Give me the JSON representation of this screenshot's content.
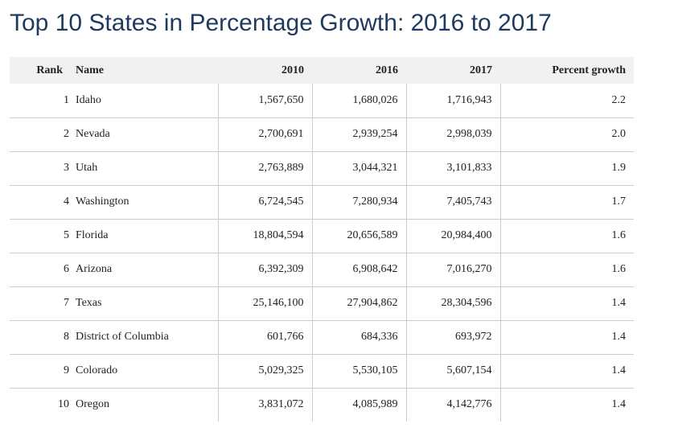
{
  "title": "Top 10 States in Percentage Growth: 2016 to 2017",
  "table": {
    "columns": [
      "Rank",
      "Name",
      "2010",
      "2016",
      "2017",
      "Percent growth"
    ],
    "rows": [
      [
        "1",
        "Idaho",
        "1,567,650",
        "1,680,026",
        "1,716,943",
        "2.2"
      ],
      [
        "2",
        "Nevada",
        "2,700,691",
        "2,939,254",
        "2,998,039",
        "2.0"
      ],
      [
        "3",
        "Utah",
        "2,763,889",
        "3,044,321",
        "3,101,833",
        "1.9"
      ],
      [
        "4",
        "Washington",
        "6,724,545",
        "7,280,934",
        "7,405,743",
        "1.7"
      ],
      [
        "5",
        "Florida",
        "18,804,594",
        "20,656,589",
        "20,984,400",
        "1.6"
      ],
      [
        "6",
        "Arizona",
        "6,392,309",
        "6,908,642",
        "7,016,270",
        "1.6"
      ],
      [
        "7",
        "Texas",
        "25,146,100",
        "27,904,862",
        "28,304,596",
        "1.4"
      ],
      [
        "8",
        "District of Columbia",
        "601,766",
        "684,336",
        "693,972",
        "1.4"
      ],
      [
        "9",
        "Colorado",
        "5,029,325",
        "5,530,105",
        "5,607,154",
        "1.4"
      ],
      [
        "10",
        "Oregon",
        "3,831,072",
        "4,085,989",
        "4,142,776",
        "1.4"
      ]
    ]
  }
}
